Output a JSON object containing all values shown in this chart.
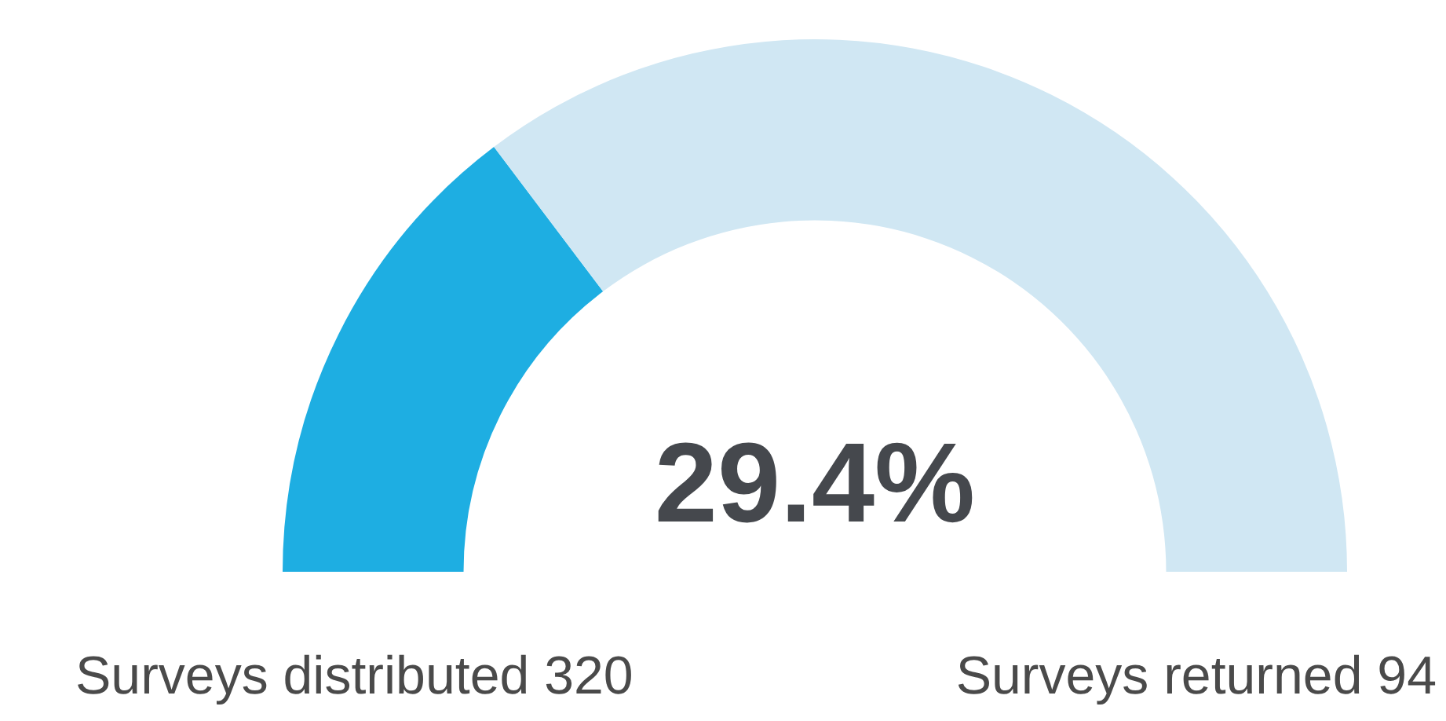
{
  "chart_data": {
    "type": "donut",
    "categories": [
      null,
      null
    ],
    "values": [
      29.4,
      70.6
    ],
    "colors": [
      "#1eaee2",
      "#d0e7f3"
    ],
    "legend": false,
    "annotations": [
      "29.4%",
      "Surveys distributed 320",
      "Surveys returned 94"
    ]
  }
}
